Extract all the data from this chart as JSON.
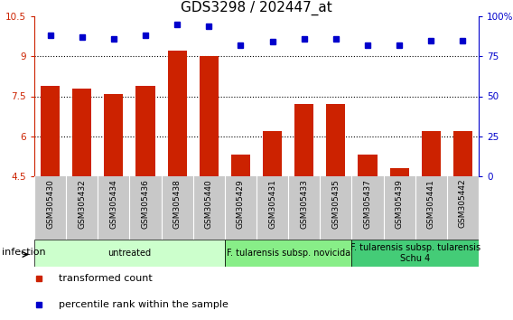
{
  "title": "GDS3298 / 202447_at",
  "samples": [
    "GSM305430",
    "GSM305432",
    "GSM305434",
    "GSM305436",
    "GSM305438",
    "GSM305440",
    "GSM305429",
    "GSM305431",
    "GSM305433",
    "GSM305435",
    "GSM305437",
    "GSM305439",
    "GSM305441",
    "GSM305442"
  ],
  "bar_values": [
    7.9,
    7.8,
    7.6,
    7.9,
    9.2,
    9.0,
    5.3,
    6.2,
    7.2,
    7.2,
    5.3,
    4.8,
    6.2,
    6.2
  ],
  "dot_values": [
    88,
    87,
    86,
    88,
    95,
    94,
    82,
    84,
    86,
    86,
    82,
    82,
    85,
    85
  ],
  "ylim_left": [
    4.5,
    10.5
  ],
  "ylim_right": [
    0,
    100
  ],
  "yticks_left": [
    4.5,
    6.0,
    7.5,
    9.0,
    10.5
  ],
  "yticks_right": [
    0,
    25,
    50,
    75,
    100
  ],
  "ytick_labels_left": [
    "4.5",
    "6",
    "7.5",
    "9",
    "10.5"
  ],
  "ytick_labels_right": [
    "0",
    "25",
    "50",
    "75",
    "100%"
  ],
  "hlines": [
    6.0,
    7.5,
    9.0
  ],
  "bar_color": "#cc2200",
  "dot_color": "#0000cc",
  "groups": [
    {
      "label": "untreated",
      "start": 0,
      "end": 6,
      "color": "#ccffcc"
    },
    {
      "label": "F. tularensis subsp. novicida",
      "start": 6,
      "end": 10,
      "color": "#88ee88"
    },
    {
      "label": "F. tularensis subsp. tularensis\nSchu 4",
      "start": 10,
      "end": 14,
      "color": "#44cc77"
    }
  ],
  "infection_label": "infection",
  "legend_items": [
    {
      "color": "#cc2200",
      "label": "transformed count"
    },
    {
      "color": "#0000cc",
      "label": "percentile rank within the sample"
    }
  ],
  "title_fontsize": 11,
  "tick_fontsize": 7.5,
  "sample_fontsize": 6.5,
  "label_fontsize": 8,
  "group_label_fontsize": 7,
  "background_color": "#ffffff",
  "gray_bg": "#c8c8c8",
  "cell_border": "#aaaaaa"
}
